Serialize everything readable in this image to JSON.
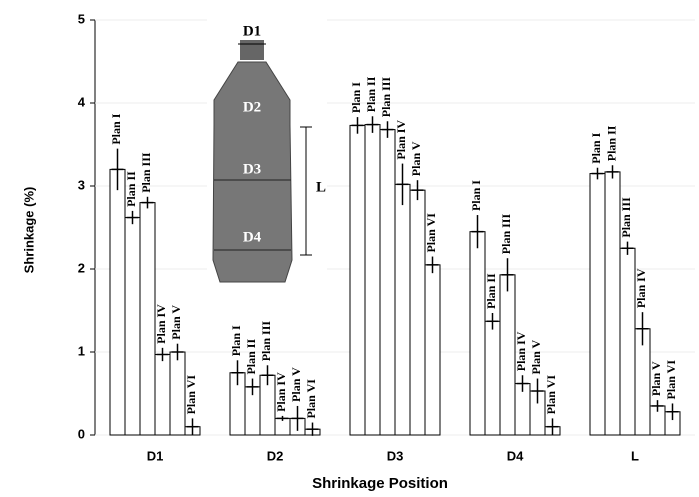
{
  "chart_data": {
    "type": "bar",
    "xlabel": "Shrinkage Position",
    "ylabel": "Shrinkage (%)",
    "categories": [
      "D1",
      "D2",
      "D3",
      "D4",
      "L"
    ],
    "series": [
      {
        "name": "Plan I",
        "color": "#ffffff",
        "values": [
          3.2,
          0.75,
          3.73,
          2.45,
          3.15
        ],
        "errors": [
          0.25,
          0.15,
          0.1,
          0.2,
          0.07
        ]
      },
      {
        "name": "Plan II",
        "color": "#ffffff",
        "values": [
          2.62,
          0.58,
          3.74,
          1.37,
          3.17
        ],
        "errors": [
          0.08,
          0.1,
          0.1,
          0.1,
          0.08
        ]
      },
      {
        "name": "Plan III",
        "color": "#ffffff",
        "values": [
          2.8,
          0.72,
          3.68,
          1.93,
          2.25
        ],
        "errors": [
          0.07,
          0.12,
          0.1,
          0.2,
          0.08
        ]
      },
      {
        "name": "Plan IV",
        "color": "#ffffff",
        "values": [
          0.97,
          0.2,
          3.02,
          0.62,
          1.28
        ],
        "errors": [
          0.08,
          0.03,
          0.25,
          0.1,
          0.2
        ]
      },
      {
        "name": "Plan V",
        "color": "#ffffff",
        "values": [
          1.0,
          0.2,
          2.95,
          0.53,
          0.35
        ],
        "errors": [
          0.1,
          0.15,
          0.12,
          0.15,
          0.07
        ]
      },
      {
        "name": "Plan VI",
        "color": "#ffffff",
        "values": [
          0.1,
          0.07,
          2.05,
          0.1,
          0.28
        ],
        "errors": [
          0.1,
          0.08,
          0.1,
          0.1,
          0.1
        ]
      }
    ],
    "ylim": [
      0,
      5
    ],
    "yticks": [
      0,
      1,
      2,
      3,
      4,
      5
    ],
    "grid": true,
    "inset_labels": [
      "D1",
      "D2",
      "D3",
      "D4",
      "L"
    ]
  }
}
